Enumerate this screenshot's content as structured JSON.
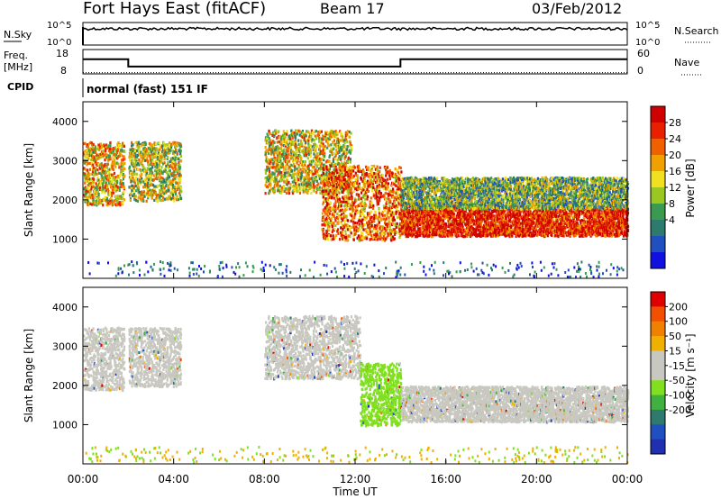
{
  "header": {
    "title": "Fort Hays East (fitACF)",
    "beam": "Beam 17",
    "date": "03/Feb/2012"
  },
  "nsky_panel": {
    "left_label": "N.Sky",
    "right_label": "N.Search",
    "left_ticks": [
      "10^5",
      "10^0"
    ],
    "right_ticks": [
      "10^5",
      "10^0"
    ],
    "series_level": 0.35
  },
  "freq_panel": {
    "left_label_1": "Freq.",
    "left_label_2": "[MHz]",
    "right_label": "Nave",
    "left_ticks": [
      "18",
      "8"
    ],
    "right_ticks": [
      "60",
      "0"
    ],
    "freq_steps": [
      [
        0,
        14
      ],
      [
        2.0,
        11
      ],
      [
        14.0,
        14
      ],
      [
        24.0,
        14
      ]
    ],
    "nave_level": 3
  },
  "cpid": {
    "label": "CPID",
    "mode": "normal (fast) 151 IF"
  },
  "chart_data": [
    {
      "type": "heatmap",
      "name": "power",
      "ylabel": "Slant Range [km]",
      "xlabel": "Time UT",
      "ylim": [
        0,
        4500
      ],
      "yticks": [
        1000,
        2000,
        3000,
        4000
      ],
      "xlim": [
        0,
        24
      ],
      "xticks": [
        "00:00",
        "04:00",
        "08:00",
        "12:00",
        "16:00",
        "20:00",
        "00:00"
      ],
      "colorbar": {
        "label": "Power [dB]",
        "ticks": [
          "4",
          "8",
          "12",
          "16",
          "20",
          "24",
          "28"
        ],
        "colors": [
          "#1010e0",
          "#2050c0",
          "#2e7a6e",
          "#3a9a50",
          "#9ac820",
          "#f0e020",
          "#f0a000",
          "#f06000",
          "#e82000",
          "#d00000"
        ]
      },
      "regions": [
        {
          "t0": 0.0,
          "t1": 1.8,
          "r0": 1900,
          "r1": 3500,
          "level": 0.6
        },
        {
          "t0": 2.0,
          "t1": 4.3,
          "r0": 2000,
          "r1": 3500,
          "level": 0.5
        },
        {
          "t0": 8.0,
          "t1": 11.8,
          "r0": 2200,
          "r1": 3800,
          "level": 0.55
        },
        {
          "t0": 10.5,
          "t1": 14.0,
          "r0": 1000,
          "r1": 2900,
          "level": 0.75
        },
        {
          "t0": 14.0,
          "t1": 24.0,
          "r0": 1100,
          "r1": 1900,
          "level": 0.9
        },
        {
          "t0": 14.0,
          "t1": 24.0,
          "r0": 1800,
          "r1": 2600,
          "level": 0.4
        }
      ]
    },
    {
      "type": "heatmap",
      "name": "velocity",
      "ylabel": "Slant Range [km]",
      "xlabel": "Time UT",
      "ylim": [
        0,
        4500
      ],
      "yticks": [
        1000,
        2000,
        3000,
        4000
      ],
      "xlim": [
        0,
        24
      ],
      "xticks": [
        "00:00",
        "04:00",
        "08:00",
        "12:00",
        "16:00",
        "20:00",
        "00:00"
      ],
      "colorbar": {
        "label": "Velocity [m s⁻¹]",
        "ticks": [
          "200",
          "100",
          "50",
          "15",
          "-15",
          "-50",
          "-100",
          "-200"
        ],
        "colors": [
          "#2030b0",
          "#2050c0",
          "#2e7a6e",
          "#40b040",
          "#80e020",
          "#c8c8c0",
          "#c8c8c0",
          "#f0b000",
          "#f08000",
          "#f05000",
          "#e00000"
        ]
      },
      "regions": [
        {
          "t0": 0.0,
          "t1": 1.8,
          "r0": 1900,
          "r1": 3500,
          "color": "#c8c8c0"
        },
        {
          "t0": 2.0,
          "t1": 4.3,
          "r0": 2000,
          "r1": 3500,
          "color": "#c8c8c0"
        },
        {
          "t0": 8.0,
          "t1": 12.2,
          "r0": 2200,
          "r1": 3800,
          "color": "#c8c8c0"
        },
        {
          "t0": 12.2,
          "t1": 14.0,
          "r0": 1000,
          "r1": 2600,
          "color": "#80e020"
        },
        {
          "t0": 14.0,
          "t1": 24.0,
          "r0": 1100,
          "r1": 2000,
          "color": "#c8c8c0"
        }
      ]
    }
  ]
}
